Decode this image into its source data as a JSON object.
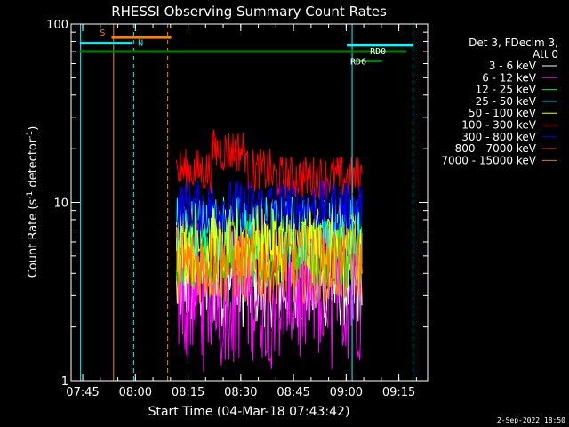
{
  "chart_data": {
    "type": "line",
    "title": "RHESSI Observing Summary Count Rates",
    "xlabel": "Start Time (04-Mar-18 07:43:42)",
    "ylabel_main": "Count Rate (s",
    "ylabel_sup1": "-1",
    "ylabel_mid": " detector",
    "ylabel_sup2": "-1",
    "ylabel_end": ")",
    "yscale": "log",
    "ylim": [
      1,
      100
    ],
    "xlim_minutes": [
      7.7,
      24.5,
      93.2
    ],
    "x_ticks": [
      "07:45",
      "08:00",
      "08:15",
      "08:30",
      "08:45",
      "09:00",
      "09:15"
    ],
    "x_tick_minutes": [
      1.3,
      16.3,
      31.3,
      46.3,
      61.3,
      76.3,
      91.3
    ],
    "y_ticks": [
      "1",
      "10",
      "100"
    ],
    "y_tick_values": [
      1,
      10,
      100
    ],
    "legend_header": [
      "Det 3, FDecim 3,",
      "Att 0"
    ],
    "series": [
      {
        "name": "3 - 6 keV",
        "color": "#ffffff",
        "level": 3.3,
        "spread": 0.9
      },
      {
        "name": "6 - 12 keV",
        "color": "#ff00ff",
        "level": 3.2,
        "spread": 1.6
      },
      {
        "name": "12 - 25 keV",
        "color": "#00ff00",
        "level": 5.2,
        "spread": 0.8
      },
      {
        "name": "25 - 50 keV",
        "color": "#00ffff",
        "level": 7.0,
        "spread": 0.8
      },
      {
        "name": "50 - 100 keV",
        "color": "#ffff00",
        "level": 5.8,
        "spread": 0.9
      },
      {
        "name": "100 - 300 keV",
        "color": "#ff0000",
        "level": 15.0,
        "spread": 0.5
      },
      {
        "name": "300 - 800 keV",
        "color": "#0000ff",
        "level": 9.5,
        "spread": 0.6
      },
      {
        "name": "800 - 7000 keV",
        "color": "#ff8000",
        "level": 4.5,
        "spread": 0.9
      },
      {
        "name": "7000 - 15000 keV",
        "color": "#cc8800",
        "level": 0,
        "spread": 0
      }
    ],
    "data_window_minutes": [
      28.0,
      81.0
    ],
    "annotations": {
      "S": {
        "label": "S",
        "color": "#ff8000",
        "start": 9.5,
        "end": 26.5,
        "level": 84
      },
      "N": {
        "label": "N",
        "color": "#00ffff",
        "start": 0.5,
        "end": 15.5,
        "level": 78
      },
      "RD0": {
        "label": "RD0",
        "color": "#00ffff",
        "start": 76.5,
        "end": 95.5,
        "level": 76
      },
      "RD6": {
        "label": "RD6",
        "color": "#008000",
        "start": 0.5,
        "end": 93.5,
        "level": 70
      },
      "RD6b": {
        "label": "",
        "color": "#008000",
        "start": 78.5,
        "end": 86.5,
        "level": 62
      }
    },
    "vlines": [
      {
        "t": 0.7,
        "color": "#00ffff",
        "style": "solid"
      },
      {
        "t": 10.1,
        "color": "#ff8000",
        "style": "solid"
      },
      {
        "t": 15.8,
        "color": "#00ffff",
        "style": "dashed"
      },
      {
        "t": 25.5,
        "color": "#ff8000",
        "style": "dashed"
      },
      {
        "t": 78.0,
        "color": "#00ffff",
        "style": "solid"
      },
      {
        "t": 95.3,
        "color": "#00ffff",
        "style": "dashed"
      }
    ]
  },
  "footer_timestamp": "2-Sep-2022 18:50"
}
